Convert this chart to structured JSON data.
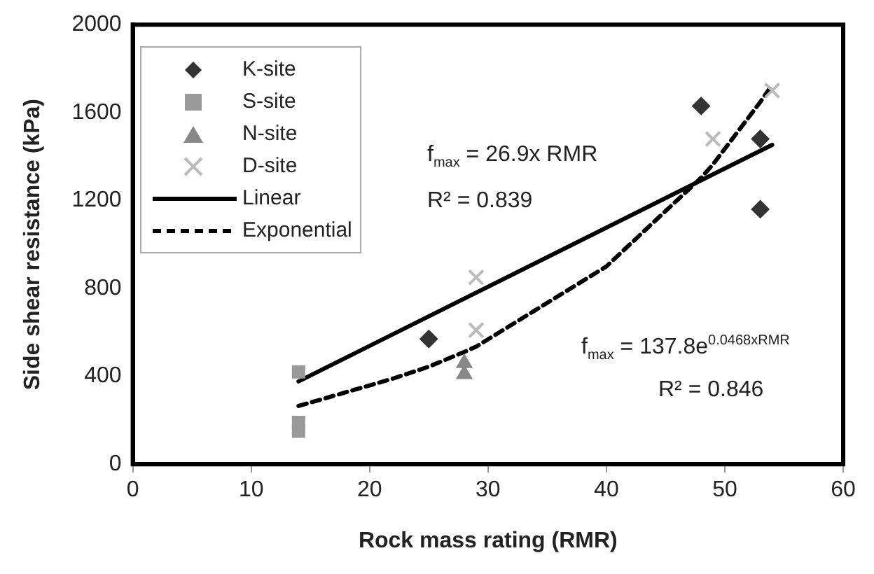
{
  "chart_data": {
    "type": "scatter",
    "xlabel": "Rock mass rating (RMR)",
    "ylabel": "Side shear resistance (kPa)",
    "xlim": [
      0,
      60
    ],
    "xticks": [
      0,
      10,
      20,
      30,
      40,
      50,
      60
    ],
    "ylim": [
      0,
      2000
    ],
    "yticks": [
      0,
      400,
      800,
      1200,
      1600,
      2000
    ],
    "grid": false,
    "legend": "top left",
    "series": [
      {
        "name": "K-site",
        "color": "#333333",
        "marker": "diamond",
        "x": [
          25,
          48,
          53,
          53
        ],
        "values": [
          570,
          1630,
          1480,
          1160
        ]
      },
      {
        "name": "S-site",
        "color": "#999999",
        "marker": "square",
        "x": [
          14,
          14,
          14
        ],
        "values": [
          420,
          190,
          150
        ]
      },
      {
        "name": "N-site",
        "color": "#888888",
        "marker": "triangle",
        "x": [
          28,
          28
        ],
        "values": [
          460,
          410
        ]
      },
      {
        "name": "D-site",
        "color": "#bbbbbb",
        "marker": "cross",
        "x": [
          29,
          29,
          49,
          54
        ],
        "values": [
          850,
          610,
          1480,
          1700
        ]
      },
      {
        "name": "Linear",
        "type": "line",
        "color": "#000000",
        "marker": "none",
        "line_style": "solid",
        "x": [
          14,
          54
        ],
        "values": [
          377,
          1453
        ]
      },
      {
        "name": "Exponential",
        "type": "line",
        "color": "#000000",
        "marker": "none",
        "line_style": "dashed",
        "x": [
          14,
          22,
          25,
          28,
          29,
          40,
          48,
          49,
          53,
          54
        ],
        "values": [
          265,
          390,
          444,
          511,
          535,
          900,
          1303,
          1364,
          1648,
          1726
        ]
      }
    ],
    "annotations": [
      "f$_{max}$ = 26.9x RMR",
      "R² = 0.839",
      "f$_{max}$ = 137.8e$^{0.0468xRMR}$",
      "R² = 0.846"
    ]
  }
}
